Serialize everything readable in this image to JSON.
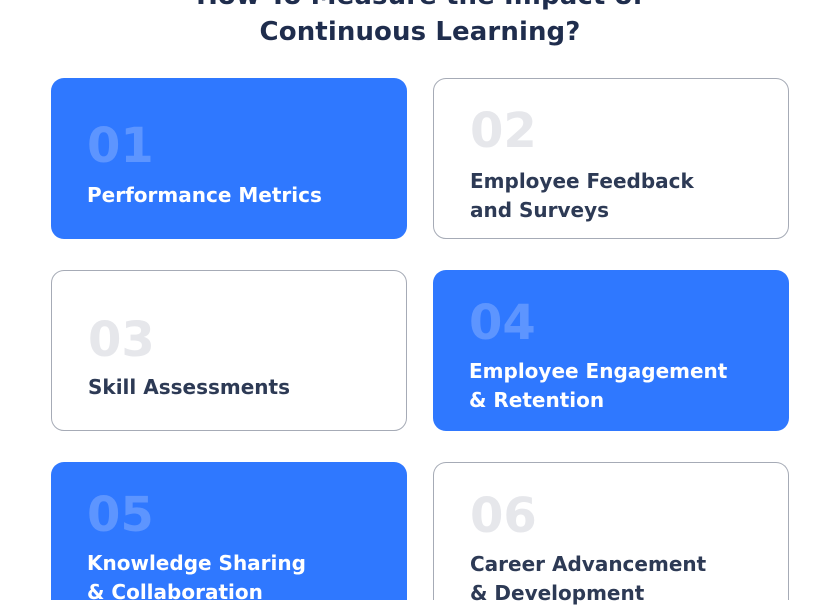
{
  "title": {
    "line1": "How To Measure the Impact of",
    "line2": "Continuous Learning?"
  },
  "cards": [
    {
      "number": "01",
      "line1": "Performance Metrics",
      "line2": "",
      "style": "blue"
    },
    {
      "number": "02",
      "line1": "Employee Feedback",
      "line2": "and Surveys",
      "style": "white"
    },
    {
      "number": "03",
      "line1": "Skill Assessments",
      "line2": "",
      "style": "white"
    },
    {
      "number": "04",
      "line1": "Employee Engagement",
      "line2": "& Retention",
      "style": "blue"
    },
    {
      "number": "05",
      "line1": "Knowledge Sharing",
      "line2": "& Collaboration",
      "style": "blue"
    },
    {
      "number": "06",
      "line1": "Career Advancement",
      "line2": "& Development",
      "style": "white"
    }
  ],
  "colors": {
    "accent_blue": "#2f78ff",
    "number_on_blue": "#5d95ff",
    "number_on_white": "#e6e7eb",
    "title_text": "#1f2d4d",
    "label_on_white": "#2d3a55",
    "card_border": "#a6abb6"
  }
}
